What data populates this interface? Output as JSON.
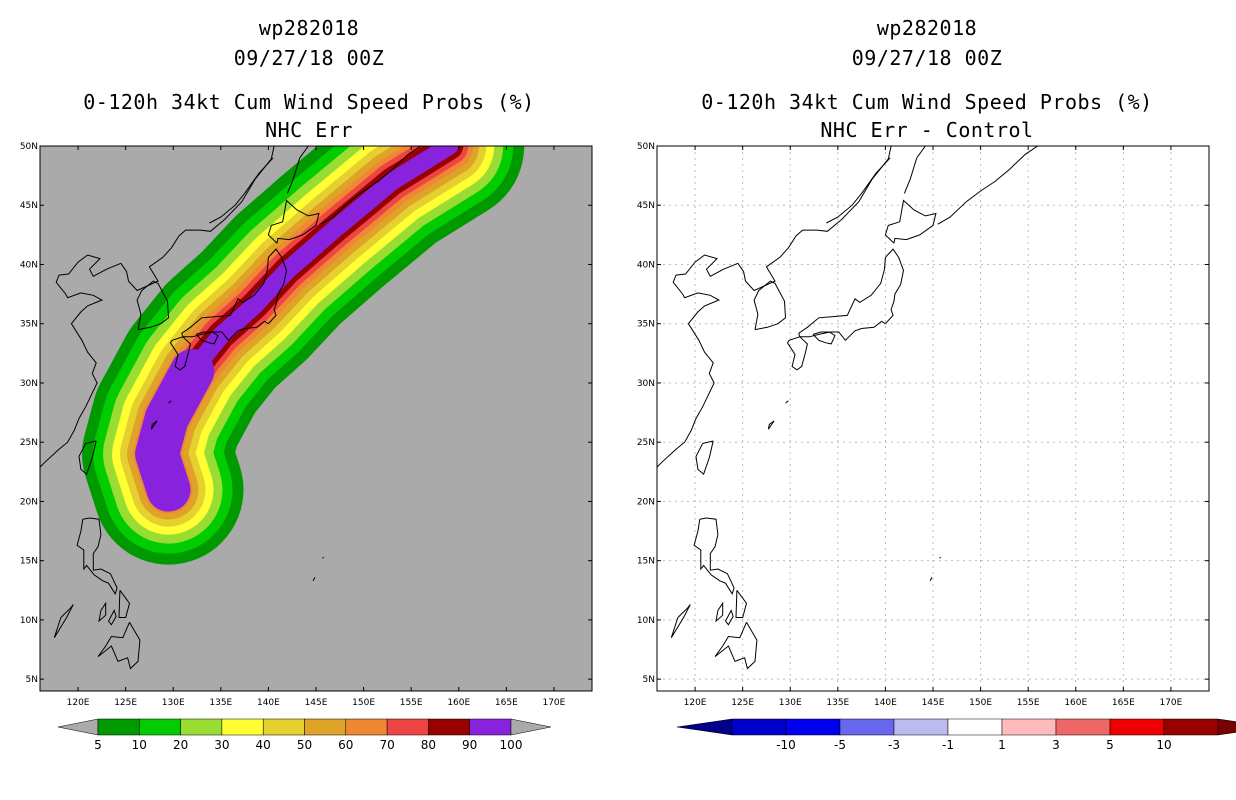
{
  "panels": [
    {
      "id": "left",
      "storm_id": "wp282018",
      "datetime": "09/27/18 00Z",
      "product": "0-120h 34kt Cum Wind Speed Probs (%)",
      "variant": "NHC Err",
      "background_color": "#aaaaaa"
    },
    {
      "id": "right",
      "storm_id": "wp282018",
      "datetime": "09/27/18 00Z",
      "product": "0-120h 34kt Cum Wind Speed Probs (%)",
      "variant": "NHC Err - Control",
      "background_color": "#ffffff"
    }
  ],
  "chart_data": [
    {
      "type": "heatmap",
      "title": "0-120h 34kt Cum Wind Speed Probs (%)",
      "subtitle": "NHC Err",
      "x_ticks": [
        "120E",
        "125E",
        "130E",
        "135E",
        "140E",
        "145E",
        "150E",
        "155E",
        "160E",
        "165E",
        "170E"
      ],
      "y_ticks": [
        "5N",
        "10N",
        "15N",
        "20N",
        "25N",
        "30N",
        "35N",
        "40N",
        "45N",
        "50N"
      ],
      "xlim": [
        116,
        174
      ],
      "ylim": [
        4,
        50
      ],
      "grid": false,
      "colorbar": {
        "levels": [
          "5",
          "10",
          "20",
          "30",
          "40",
          "50",
          "60",
          "70",
          "80",
          "90",
          "100"
        ],
        "colors": [
          "#009900",
          "#00cc00",
          "#99dd33",
          "#ffff33",
          "#e5d030",
          "#e0a32a",
          "#ee8833",
          "#ee4444",
          "#990000",
          "#8822dd"
        ],
        "under_color": "#aaaaaa",
        "over_color": "#aaaaaa"
      },
      "track": {
        "description": "probability swath from ~20N 129E curving north then northeast over Japan toward ~50N 160E",
        "center_points": [
          [
            129.5,
            21
          ],
          [
            128.3,
            24
          ],
          [
            129.3,
            27
          ],
          [
            132,
            31
          ],
          [
            135,
            34
          ],
          [
            138.5,
            36.5
          ],
          [
            142,
            39.5
          ],
          [
            147,
            43
          ],
          [
            153,
            47
          ],
          [
            159,
            50
          ]
        ]
      }
    },
    {
      "type": "heatmap",
      "title": "0-120h 34kt Cum Wind Speed Probs (%)",
      "subtitle": "NHC Err - Control",
      "x_ticks": [
        "120E",
        "125E",
        "130E",
        "135E",
        "140E",
        "145E",
        "150E",
        "155E",
        "160E",
        "165E",
        "170E"
      ],
      "y_ticks": [
        "5N",
        "10N",
        "15N",
        "20N",
        "25N",
        "30N",
        "35N",
        "40N",
        "45N",
        "50N"
      ],
      "xlim": [
        116,
        174
      ],
      "ylim": [
        4,
        50
      ],
      "grid": true,
      "colorbar": {
        "levels": [
          "-10",
          "-5",
          "-3",
          "-1",
          "1",
          "3",
          "5",
          "10"
        ],
        "colors": [
          "#0000cc",
          "#0000ee",
          "#6666ee",
          "#bbbbee",
          "#ffffff",
          "#ffbbbb",
          "#ee6666",
          "#ee0000",
          "#990000"
        ],
        "under_color": "#000088",
        "over_color": "#770000"
      },
      "values": "all differences between -1 and 1 (field is white)"
    }
  ]
}
